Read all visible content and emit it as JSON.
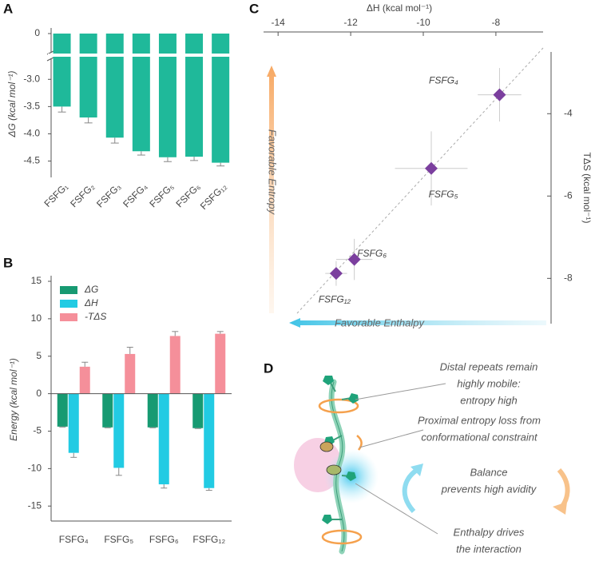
{
  "chart_data": [
    {
      "type": "bar",
      "panel_label": "A",
      "y_label": "ΔG (kcal mol⁻¹)",
      "categories": [
        "FSFG₁",
        "FSFG₂",
        "FSFG₃",
        "FSFG₄",
        "FSFG₅",
        "FSFG₆",
        "FSFG₁₂"
      ],
      "values": [
        -3.5,
        -3.7,
        -4.07,
        -4.32,
        -4.43,
        -4.42,
        -4.53
      ],
      "errors": [
        0.1,
        0.1,
        0.1,
        0.07,
        0.08,
        0.07,
        0.06
      ],
      "color": "#1fb99a",
      "error_color": "#888888",
      "ylim": [
        -4.8,
        -2.6
      ],
      "yticks": [
        {
          "value": -3,
          "label": "-3.0"
        },
        -3.5,
        {
          "value": -4,
          "label": "-4.0"
        },
        -4.5
      ],
      "axis_break": true,
      "break_ticks": [
        0
      ]
    },
    {
      "type": "grouped_bar",
      "panel_label": "B",
      "y_label": "Energy (kcal mol⁻¹)",
      "categories": [
        "FSFG₄",
        "FSFG₅",
        "FSFG₆",
        "FSFG₁₂"
      ],
      "series": [
        {
          "name": "ΔG",
          "color": "#179a72",
          "values": [
            -4.4,
            -4.5,
            -4.5,
            -4.6
          ],
          "errors": [
            0.05,
            0.05,
            0.05,
            0.05
          ]
        },
        {
          "name": "ΔH",
          "color": "#22cbe3",
          "values": [
            -7.9,
            -9.9,
            -12.1,
            -12.6
          ],
          "errors": [
            0.6,
            1.0,
            0.5,
            0.3
          ]
        },
        {
          "name": "-TΔS",
          "color": "#f58f9a",
          "values": [
            3.6,
            5.3,
            7.7,
            8.0
          ],
          "errors": [
            0.6,
            0.9,
            0.6,
            0.3
          ]
        }
      ],
      "ylim": [
        -17,
        15
      ],
      "yticks": [
        -15,
        -10,
        -5,
        0,
        5,
        10,
        15
      ],
      "legend": "top-left"
    },
    {
      "type": "scatter",
      "panel_label": "C",
      "x_label": "ΔH (kcal mol⁻¹)",
      "y_label": "TΔS (kcal mol⁻¹)",
      "labels": [
        "FSFG₄",
        "FSFG₅",
        "FSFG₆",
        "FSFG₁₂"
      ],
      "x": [
        -7.9,
        -9.78,
        -11.9,
        -12.4
      ],
      "values": [
        -3.54,
        -5.33,
        -7.54,
        -7.88
      ],
      "x_errors": [
        0.6,
        1.0,
        0.5,
        0.3
      ],
      "y_errors": [
        0.65,
        0.9,
        0.5,
        0.3
      ],
      "color": "#7b3f9e",
      "xlim": [
        -14.4,
        -6.7
      ],
      "xticks": [
        -14,
        -12,
        -10,
        -8
      ],
      "ylim": [
        -9.1,
        -2.5
      ],
      "yticks": [
        -4,
        -6,
        -8
      ],
      "annotations": [
        "Favorable Entropy",
        "Favorable Enthalpy"
      ]
    }
  ],
  "diagram": {
    "panel_label": "D",
    "annotations": [
      {
        "lines": [
          "Distal repeats remain",
          "highly mobile:",
          "entropy high"
        ]
      },
      {
        "lines": [
          "Proximal entropy loss from",
          "conformational constraint"
        ]
      },
      {
        "lines": [
          "Balance",
          "prevents high avidity"
        ]
      },
      {
        "lines": [
          "Enthalpy drives",
          "the interaction"
        ]
      }
    ]
  }
}
